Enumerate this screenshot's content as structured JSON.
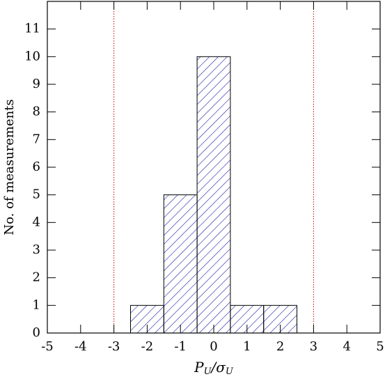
{
  "chart_data": {
    "type": "histogram",
    "xlabel": [
      "P",
      "U",
      "/σ",
      "U"
    ],
    "ylabel": "No. of measurements",
    "bins": [
      -2.5,
      -1.5,
      -0.5,
      0.5,
      1.5,
      2.5
    ],
    "values": [
      1,
      5,
      10,
      1,
      1
    ],
    "color": "#1a1aa6",
    "hatch": true,
    "xlim": [
      -5,
      5
    ],
    "ylim": [
      0,
      12
    ],
    "xticks": [
      -5,
      -4,
      -3,
      -2,
      -1,
      0,
      1,
      2,
      3,
      4,
      5
    ],
    "yticks": [
      0,
      1,
      2,
      3,
      4,
      5,
      6,
      7,
      8,
      9,
      10,
      11
    ],
    "vlines": [
      -3,
      3
    ],
    "vline_color": "#cc0000"
  }
}
